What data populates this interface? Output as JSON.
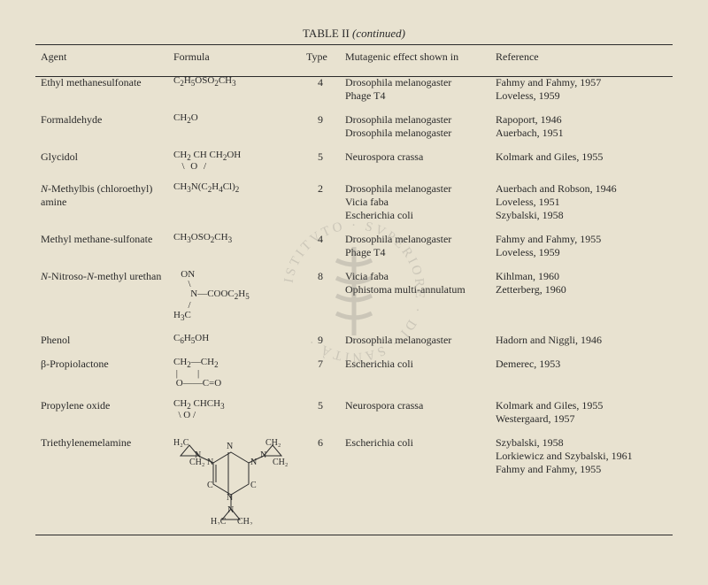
{
  "title_prefix": "TABLE II",
  "title_suffix": "(continued)",
  "headers": {
    "agent": "Agent",
    "formula": "Formula",
    "type": "Type",
    "mutagenic": "Mutagenic effect shown in",
    "reference": "Reference"
  },
  "rows": [
    {
      "agent": "Ethyl methanesulfonate",
      "formula_html": "C<sub>2</sub>H<sub>5</sub>OSO<sub>2</sub>CH<sub>3</sub>",
      "type": "4",
      "mutagenic": [
        "Drosophila melanogaster",
        "Phage T4"
      ],
      "reference": [
        "Fahmy and Fahmy, 1957",
        "Loveless, 1959"
      ]
    },
    {
      "agent": "Formaldehyde",
      "formula_html": "CH<sub>2</sub>O",
      "type": "9",
      "mutagenic": [
        "Drosophila melanogaster",
        "Drosophila melanogaster"
      ],
      "reference": [
        "Rapoport, 1946",
        "Auerbach, 1951"
      ]
    },
    {
      "agent": "Glycidol",
      "formula_html": "CH<sub>2</sub>&nbsp;CH&nbsp;CH<sub>2</sub>OH<br><span style='letter-spacing:2px'>&nbsp;&nbsp;\\&nbsp;O&nbsp;/</span>",
      "type": "5",
      "mutagenic": [
        "Neurospora crassa"
      ],
      "reference": [
        "Kolmark and Giles, 1955"
      ]
    },
    {
      "agent": "<span class='ital'>N</span>-Methylbis (chloroethyl) amine",
      "formula_html": "CH<sub>3</sub>N(C<sub>2</sub>H<sub>4</sub>Cl)<sub>2</sub>",
      "type": "2",
      "mutagenic": [
        "Drosophila melanogaster",
        "Vicia faba",
        "Escherichia coli"
      ],
      "reference": [
        "Auerbach and Robson, 1946",
        "Loveless, 1951",
        "Szybalski, 1958"
      ]
    },
    {
      "agent": "Methyl methane-sulfonate",
      "formula_html": "CH<sub>3</sub>OSO<sub>2</sub>CH<sub>3</sub>",
      "type": "4",
      "mutagenic": [
        "Drosophila melanogaster",
        "Phage T4"
      ],
      "reference": [
        "Fahmy and Fahmy, 1955",
        "Loveless, 1959"
      ]
    },
    {
      "agent": "<span class='ital'>N</span>-Nitroso-<span class='ital'>N</span>-methyl urethan",
      "formula_html": "&nbsp;&nbsp;&nbsp;ON<br>&nbsp;&nbsp;&nbsp;&nbsp;&nbsp;&nbsp;\\<br>&nbsp;&nbsp;&nbsp;&nbsp;&nbsp;&nbsp;&nbsp;N—COOC<sub>2</sub>H<sub>5</sub><br>&nbsp;&nbsp;&nbsp;&nbsp;&nbsp;&nbsp;/<br>H<sub>3</sub>C",
      "type": "8",
      "mutagenic": [
        "Vicia faba",
        "Ophistoma multi-annulatum"
      ],
      "reference": [
        "Kihlman, 1960",
        "Zetterberg, 1960"
      ]
    },
    {
      "agent": "Phenol",
      "formula_html": "C<sub>6</sub>H<sub>5</sub>OH",
      "type": "9",
      "mutagenic": [
        "Drosophila melanogaster"
      ],
      "reference": [
        "Hadorn and Niggli, 1946"
      ]
    },
    {
      "agent": "β-Propiolactone",
      "formula_html": "CH<sub>2</sub>—CH<sub>2</sub><br>&nbsp;|&nbsp;&nbsp;&nbsp;&nbsp;&nbsp;&nbsp;&nbsp;&nbsp;|<br>&nbsp;O——C=O",
      "type": "7",
      "mutagenic": [
        "Escherichia coli"
      ],
      "reference": [
        "Demerec, 1953"
      ]
    },
    {
      "agent": "Propylene oxide",
      "formula_html": "CH<sub>2</sub>&nbsp;CHCH<sub>3</sub><br>&nbsp;&nbsp;\\&nbsp;O&nbsp;/",
      "type": "5",
      "mutagenic": [
        "Neurospora crassa"
      ],
      "reference": [
        "Kolmark and Giles, 1955",
        "Westergaard, 1957"
      ]
    },
    {
      "agent": "Triethylenemelamine",
      "formula_svg": true,
      "type": "6",
      "mutagenic": [
        "Escherichia coli"
      ],
      "reference": [
        "Szybalski, 1958",
        "Lorkiewicz and Szybalski, 1961",
        "Fahmy and Fahmy, 1955"
      ]
    }
  ],
  "col_widths": [
    "150px",
    "150px",
    "44px",
    "170px",
    "auto"
  ],
  "watermark_text": "ISTITVTO SVPERIORE DI SANITÀ"
}
